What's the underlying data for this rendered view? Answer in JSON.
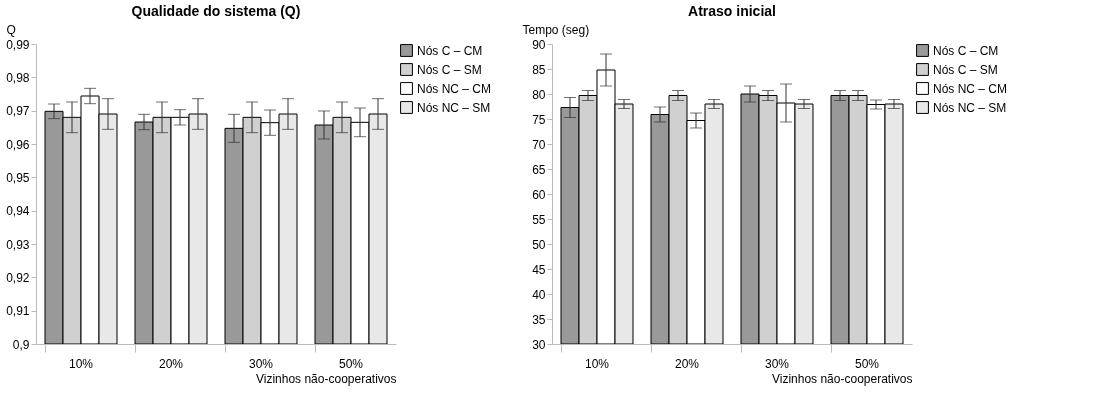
{
  "chart_data": [
    {
      "type": "bar",
      "title": "Qualidade do sistema (Q)",
      "ylabel": "Q",
      "xlabel": "Vizinhos não-cooperativos",
      "categories": [
        "10%",
        "20%",
        "30%",
        "50%"
      ],
      "series": [
        {
          "name": "Nós C – CM",
          "color": "#999999",
          "values": [
            0.9698,
            0.9666,
            0.9647,
            0.9657
          ],
          "errors": [
            0.0022,
            0.0023,
            0.0042,
            0.0042
          ]
        },
        {
          "name": "Nós C – SM",
          "color": "#d0d0d0",
          "values": [
            0.968,
            0.968,
            0.968,
            0.968
          ],
          "errors": [
            0.0046,
            0.0046,
            0.0046,
            0.0046
          ]
        },
        {
          "name": "Nós NC – CM",
          "color": "#ffffff",
          "values": [
            0.9744,
            0.968,
            0.9664,
            0.9665
          ],
          "errors": [
            0.0023,
            0.0023,
            0.0038,
            0.0043
          ]
        },
        {
          "name": "Nós NC – SM",
          "color": "#e8e8e8",
          "values": [
            0.969,
            0.969,
            0.969,
            0.969
          ],
          "errors": [
            0.0046,
            0.0046,
            0.0046,
            0.0046
          ]
        }
      ],
      "ylim": [
        0.9,
        0.99
      ],
      "yticks": [
        {
          "value": 0.9,
          "label": "0,9"
        },
        {
          "value": 0.91,
          "label": "0,91"
        },
        {
          "value": 0.92,
          "label": "0,92"
        },
        {
          "value": 0.93,
          "label": "0,93"
        },
        {
          "value": 0.94,
          "label": "0,94"
        },
        {
          "value": 0.95,
          "label": "0,95"
        },
        {
          "value": 0.96,
          "label": "0,96"
        },
        {
          "value": 0.97,
          "label": "0,97"
        },
        {
          "value": 0.98,
          "label": "0,98"
        },
        {
          "value": 0.99,
          "label": "0,99"
        }
      ],
      "grid": false,
      "legend": "top right"
    },
    {
      "type": "bar",
      "title": "Atraso inicial",
      "ylabel": "Tempo (seg)",
      "xlabel": "Vizinhos não-cooperativos",
      "categories": [
        "10%",
        "20%",
        "30%",
        "50%"
      ],
      "series": [
        {
          "name": "Nós C – CM",
          "color": "#999999",
          "values": [
            77.3,
            75.9,
            80.0,
            79.7
          ],
          "errors": [
            2.0,
            1.5,
            1.6,
            1.0
          ]
        },
        {
          "name": "Nós C – SM",
          "color": "#d0d0d0",
          "values": [
            79.7,
            79.7,
            79.7,
            79.7
          ],
          "errors": [
            1.0,
            1.0,
            1.0,
            1.0
          ]
        },
        {
          "name": "Nós NC – CM",
          "color": "#ffffff",
          "values": [
            84.8,
            74.7,
            78.2,
            77.9
          ],
          "errors": [
            3.2,
            1.5,
            3.8,
            0.9
          ]
        },
        {
          "name": "Nós NC – SM",
          "color": "#e8e8e8",
          "values": [
            78.0,
            78.0,
            78.0,
            78.0
          ],
          "errors": [
            0.9,
            0.9,
            0.9,
            0.9
          ]
        }
      ],
      "ylim": [
        30,
        90
      ],
      "yticks": [
        30,
        35,
        40,
        45,
        50,
        55,
        60,
        65,
        70,
        75,
        80,
        85,
        90
      ],
      "grid": false,
      "legend": "top right"
    }
  ]
}
